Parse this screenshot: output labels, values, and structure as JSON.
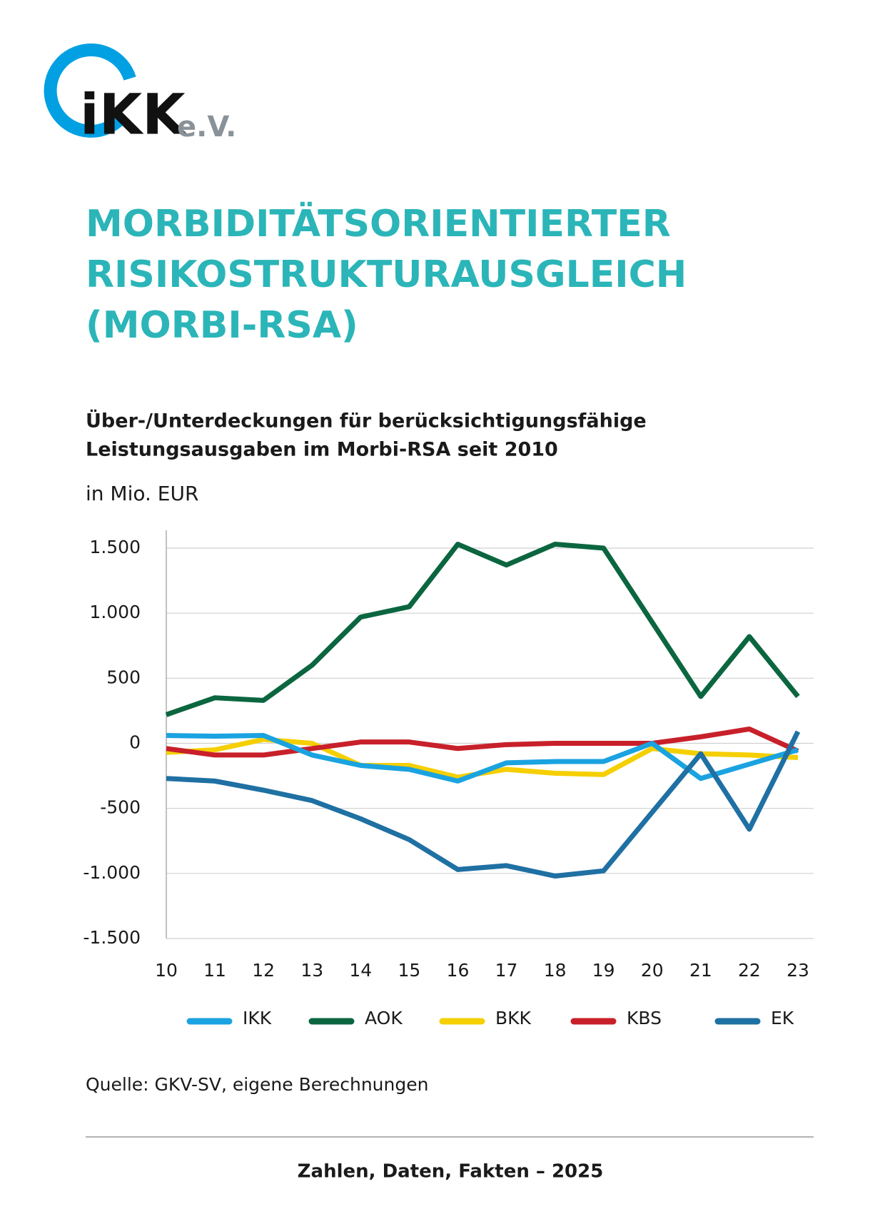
{
  "logo": {
    "brand": "iKK",
    "suffix": "e.V."
  },
  "title": [
    "MORBIDITÄTSORIENTIERTER",
    "RISIKOSTRUKTURAUSGLEICH",
    "(MORBI-RSA)"
  ],
  "chart_data": {
    "type": "line",
    "title": [
      "Über-/Unterdeckungen für berücksichtigungsfähige",
      "Leistungsausgaben im Morbi-RSA seit 2010"
    ],
    "y_label": "in Mio. EUR",
    "categories": [
      "10",
      "11",
      "12",
      "13",
      "14",
      "15",
      "16",
      "17",
      "18",
      "19",
      "20",
      "21",
      "22",
      "23"
    ],
    "ylim": [
      -1500,
      1500
    ],
    "yticks": [
      {
        "value": 1500,
        "label": "1.500"
      },
      {
        "value": 1000,
        "label": "1.000"
      },
      500,
      0,
      -500,
      {
        "value": -1000,
        "label": "-1.000"
      },
      {
        "value": -1500,
        "label": "-1.500"
      }
    ],
    "grid": true,
    "series": [
      {
        "name": "IKK",
        "color": "#1aa3e0",
        "values": [
          60,
          55,
          60,
          -90,
          -170,
          -200,
          -290,
          -150,
          -140,
          -140,
          0,
          -270,
          -160,
          -50
        ]
      },
      {
        "name": "AOK",
        "color": "#0b6640",
        "values": [
          220,
          350,
          330,
          600,
          970,
          1050,
          1530,
          1370,
          1530,
          1500,
          930,
          360,
          820,
          360
        ]
      },
      {
        "name": "BKK",
        "color": "#f5cf00",
        "values": [
          -70,
          -50,
          30,
          0,
          -170,
          -170,
          -260,
          -200,
          -230,
          -240,
          -40,
          -80,
          -90,
          -110
        ]
      },
      {
        "name": "KBS",
        "color": "#c8202a",
        "values": [
          -40,
          -90,
          -90,
          -40,
          10,
          10,
          -40,
          -10,
          0,
          0,
          0,
          50,
          110,
          -60
        ]
      },
      {
        "name": "EK",
        "color": "#1f70a3",
        "values": [
          -270,
          -290,
          -360,
          -440,
          -580,
          -740,
          -970,
          -940,
          -1020,
          -980,
          -530,
          -80,
          -660,
          90
        ]
      }
    ]
  },
  "source": "Quelle: GKV-SV, eigene Berechnungen",
  "footer": "Zahlen, Daten, Fakten – 2025"
}
